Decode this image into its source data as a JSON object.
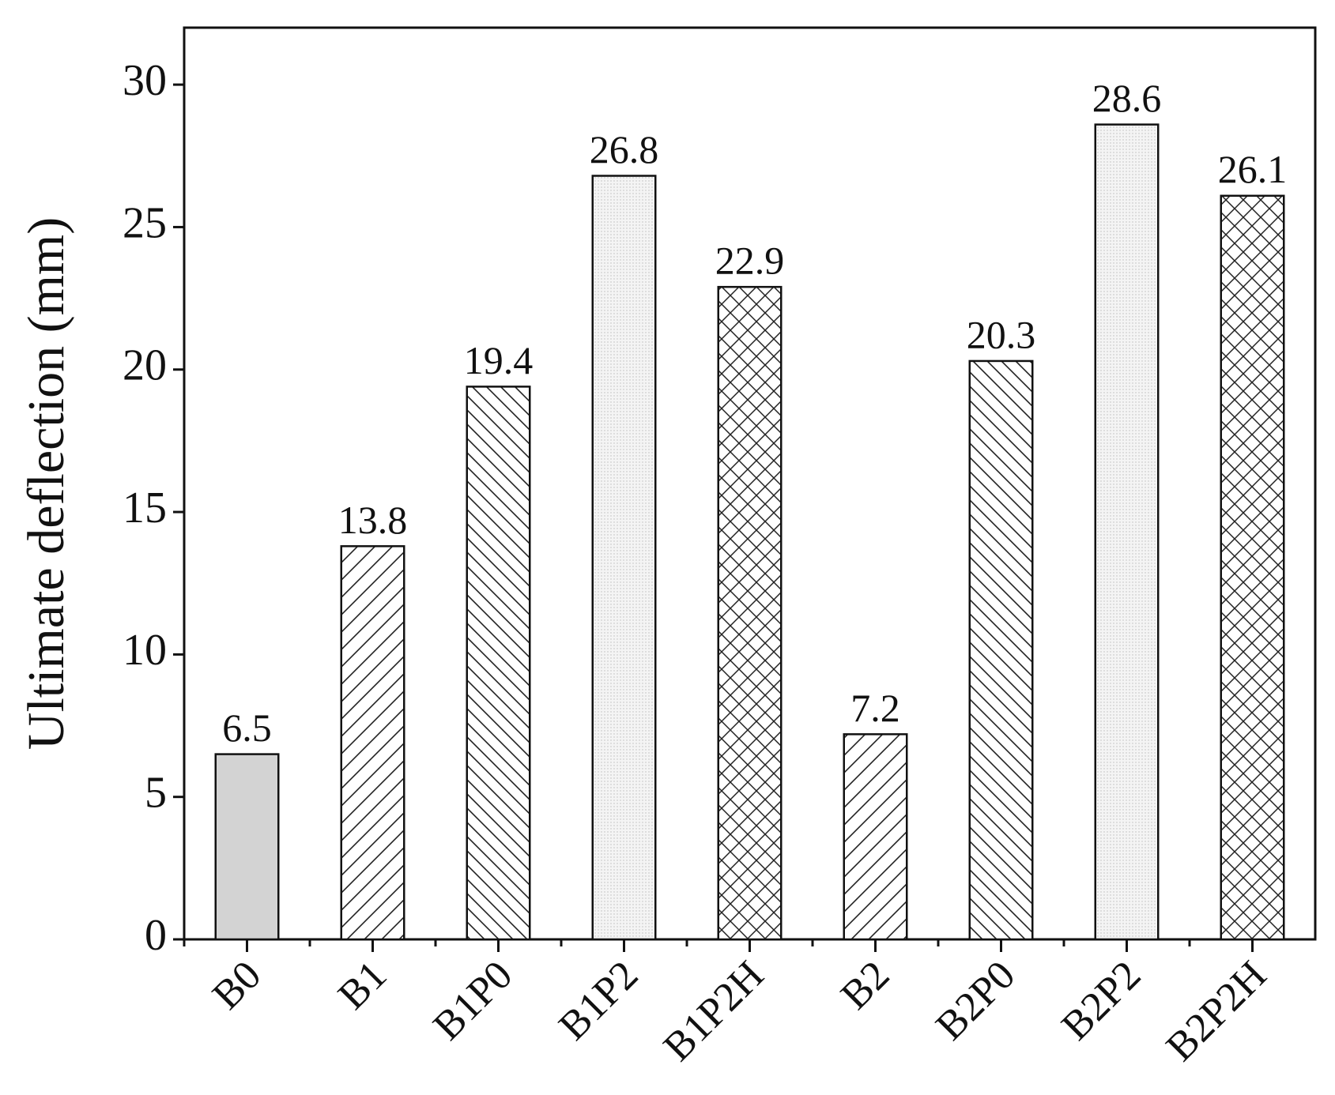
{
  "chart_data": {
    "type": "bar",
    "y_label": "Ultimate deflection (mm)",
    "categories": [
      "B0",
      "B1",
      "B1P0",
      "B1P2",
      "B1P2H",
      "B2",
      "B2P0",
      "B2P2",
      "B2P2H"
    ],
    "values": [
      6.5,
      13.8,
      19.4,
      26.8,
      22.9,
      7.2,
      20.3,
      28.6,
      26.1
    ],
    "colors": [
      "#d3d3d3",
      "#ffffff",
      "#ffffff",
      "#f4f4f4",
      "#ffffff",
      "#ffffff",
      "#ffffff",
      "#f4f4f4",
      "#ffffff"
    ],
    "patterns": [
      "solid",
      "forward-hatch",
      "back-hatch",
      "dots",
      "cross-hatch",
      "forward-hatch",
      "back-hatch",
      "dots",
      "cross-hatch"
    ],
    "ylim": [
      0,
      32
    ],
    "yticks": [
      0,
      5,
      10,
      15,
      20,
      25,
      30
    ],
    "grid": false
  }
}
